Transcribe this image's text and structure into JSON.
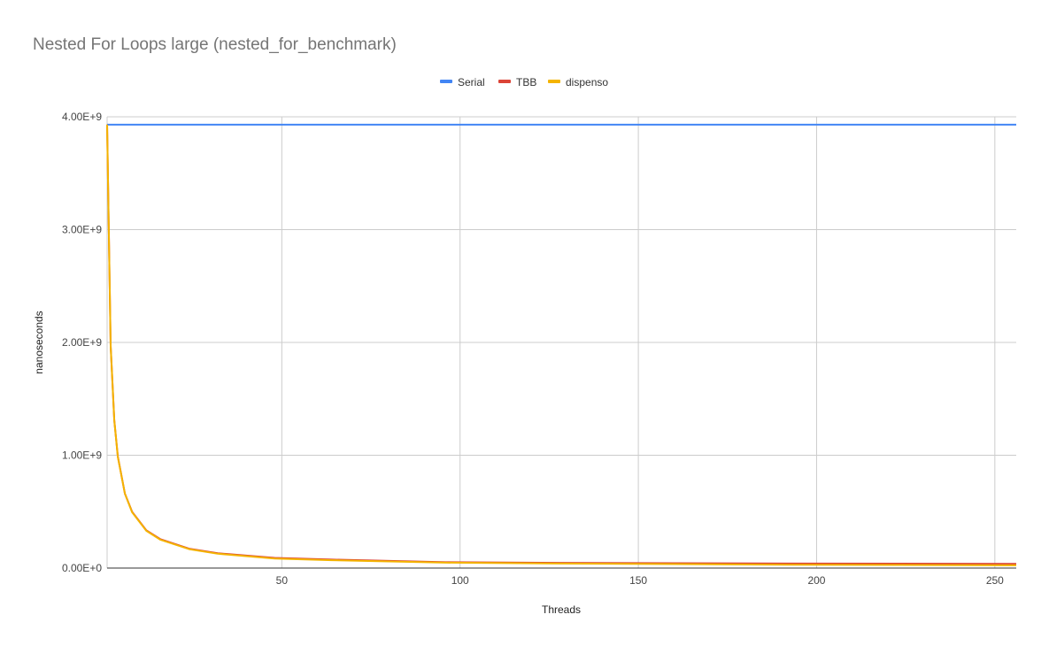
{
  "chart_data": {
    "type": "line",
    "title": "Nested For Loops large (nested_for_benchmark)",
    "xlabel": "Threads",
    "ylabel": "nanoseconds",
    "xlim": [
      1,
      256
    ],
    "ylim": [
      0,
      4000000000
    ],
    "x_ticks": [
      50,
      100,
      150,
      200,
      250
    ],
    "x_tick_labels": [
      "50",
      "100",
      "150",
      "200",
      "250"
    ],
    "y_ticks": [
      0,
      1000000000,
      2000000000,
      3000000000,
      4000000000
    ],
    "y_tick_labels": [
      "0.00E+0",
      "1.00E+9",
      "2.00E+9",
      "3.00E+9",
      "4.00E+9"
    ],
    "grid": true,
    "legend_position": "top",
    "x": [
      1,
      2,
      3,
      4,
      6,
      8,
      12,
      16,
      24,
      32,
      48,
      64,
      96,
      128,
      192,
      256
    ],
    "series": [
      {
        "name": "Serial",
        "color": "#4285f4",
        "values": [
          3930000000,
          3930000000,
          3930000000,
          3930000000,
          3930000000,
          3930000000,
          3930000000,
          3930000000,
          3930000000,
          3930000000,
          3930000000,
          3930000000,
          3930000000,
          3930000000,
          3930000000,
          3930000000
        ]
      },
      {
        "name": "TBB",
        "color": "#db4437",
        "values": [
          3930000000,
          1970000000,
          1310000000,
          990000000,
          660000000,
          500000000,
          335000000,
          255000000,
          172000000,
          132000000,
          90000000,
          75000000,
          52000000,
          46000000,
          40000000,
          38000000
        ]
      },
      {
        "name": "dispenso",
        "color": "#f4b400",
        "values": [
          3930000000,
          1970000000,
          1310000000,
          985000000,
          660000000,
          495000000,
          330000000,
          250000000,
          168000000,
          127000000,
          85000000,
          70000000,
          48000000,
          40000000,
          30000000,
          24000000
        ]
      }
    ]
  }
}
